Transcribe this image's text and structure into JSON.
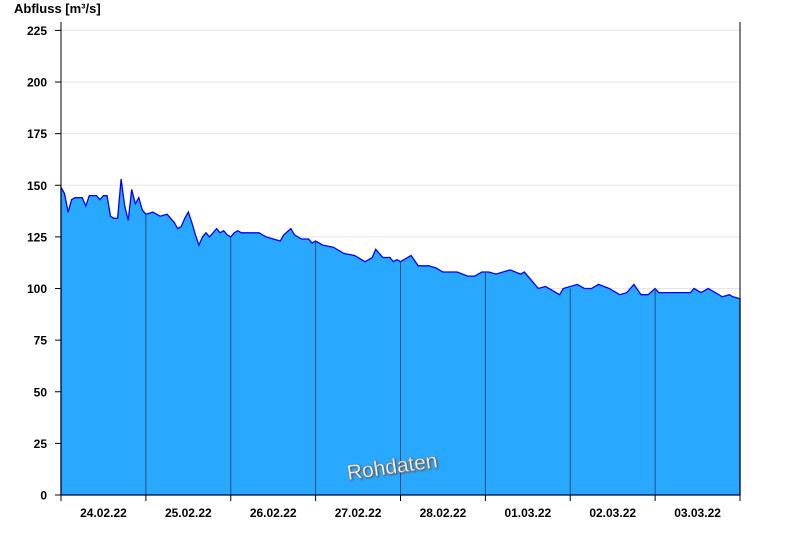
{
  "chart_data": {
    "type": "area",
    "title": "",
    "ylabel": "Abfluss [m³/s]",
    "xlabel": "",
    "ylim": [
      0,
      225
    ],
    "yticks": [
      "0",
      "25",
      "50",
      "75",
      "100",
      "125",
      "150",
      "175",
      "200",
      "225"
    ],
    "xlim": [
      "2022-02-24 00:00",
      "2022-03-04 00:00"
    ],
    "xtick_labels": [
      "24.02.22",
      "25.02.22",
      "26.02.22",
      "27.02.22",
      "28.02.22",
      "01.03.22",
      "02.03.22",
      "03.03.22"
    ],
    "grid": "horizontal",
    "annotation": "Rohdaten",
    "colors": {
      "fill": "#29a8ff",
      "line": "#0000ff",
      "grid": "#e6e6e6",
      "day_line": "#1f4f7a"
    },
    "series": [
      {
        "points": [
          [
            "2022-02-24 00:00",
            149
          ],
          [
            "2022-02-24 01:00",
            146
          ],
          [
            "2022-02-24 02:00",
            137
          ],
          [
            "2022-02-24 03:00",
            143
          ],
          [
            "2022-02-24 04:00",
            144
          ],
          [
            "2022-02-24 06:00",
            144
          ],
          [
            "2022-02-24 07:00",
            140
          ],
          [
            "2022-02-24 08:00",
            145
          ],
          [
            "2022-02-24 10:00",
            145
          ],
          [
            "2022-02-24 11:00",
            143
          ],
          [
            "2022-02-24 12:00",
            145
          ],
          [
            "2022-02-24 13:00",
            145
          ],
          [
            "2022-02-24 14:00",
            135
          ],
          [
            "2022-02-24 15:00",
            134
          ],
          [
            "2022-02-24 16:00",
            134
          ],
          [
            "2022-02-24 17:00",
            153
          ],
          [
            "2022-02-24 18:00",
            140
          ],
          [
            "2022-02-24 19:00",
            133
          ],
          [
            "2022-02-24 20:00",
            148
          ],
          [
            "2022-02-24 21:00",
            141
          ],
          [
            "2022-02-24 22:00",
            144
          ],
          [
            "2022-02-24 23:00",
            138
          ],
          [
            "2022-02-25 00:00",
            136
          ],
          [
            "2022-02-25 02:00",
            137
          ],
          [
            "2022-02-25 04:00",
            135
          ],
          [
            "2022-02-25 06:00",
            136
          ],
          [
            "2022-02-25 08:00",
            132
          ],
          [
            "2022-02-25 09:00",
            129
          ],
          [
            "2022-02-25 10:00",
            130
          ],
          [
            "2022-02-25 11:00",
            134
          ],
          [
            "2022-02-25 12:00",
            137
          ],
          [
            "2022-02-25 13:00",
            132
          ],
          [
            "2022-02-25 14:00",
            126
          ],
          [
            "2022-02-25 15:00",
            121
          ],
          [
            "2022-02-25 16:00",
            125
          ],
          [
            "2022-02-25 17:00",
            127
          ],
          [
            "2022-02-25 18:00",
            125
          ],
          [
            "2022-02-25 19:00",
            127
          ],
          [
            "2022-02-25 20:00",
            129
          ],
          [
            "2022-02-25 21:00",
            127
          ],
          [
            "2022-02-25 22:00",
            128
          ],
          [
            "2022-02-25 23:00",
            126
          ],
          [
            "2022-02-26 00:00",
            125
          ],
          [
            "2022-02-26 01:00",
            127
          ],
          [
            "2022-02-26 02:00",
            128
          ],
          [
            "2022-02-26 03:00",
            127
          ],
          [
            "2022-02-26 08:00",
            127
          ],
          [
            "2022-02-26 10:00",
            125
          ],
          [
            "2022-02-26 12:00",
            124
          ],
          [
            "2022-02-26 14:00",
            123
          ],
          [
            "2022-02-26 15:00",
            126
          ],
          [
            "2022-02-26 17:00",
            129
          ],
          [
            "2022-02-26 18:00",
            126
          ],
          [
            "2022-02-26 20:00",
            124
          ],
          [
            "2022-02-26 22:00",
            124
          ],
          [
            "2022-02-26 23:00",
            122
          ],
          [
            "2022-02-27 00:00",
            123
          ],
          [
            "2022-02-27 02:00",
            121
          ],
          [
            "2022-02-27 05:00",
            120
          ],
          [
            "2022-02-27 08:00",
            117
          ],
          [
            "2022-02-27 11:00",
            116
          ],
          [
            "2022-02-27 14:00",
            113
          ],
          [
            "2022-02-27 16:00",
            115
          ],
          [
            "2022-02-27 17:00",
            119
          ],
          [
            "2022-02-27 19:00",
            115
          ],
          [
            "2022-02-27 21:00",
            115
          ],
          [
            "2022-02-27 22:00",
            113
          ],
          [
            "2022-02-27 23:00",
            114
          ],
          [
            "2022-02-28 00:00",
            113
          ],
          [
            "2022-02-28 03:00",
            116
          ],
          [
            "2022-02-28 05:00",
            111
          ],
          [
            "2022-02-28 08:00",
            111
          ],
          [
            "2022-02-28 10:00",
            110
          ],
          [
            "2022-02-28 12:00",
            108
          ],
          [
            "2022-02-28 16:00",
            108
          ],
          [
            "2022-02-28 19:00",
            106
          ],
          [
            "2022-02-28 21:00",
            106
          ],
          [
            "2022-02-28 23:00",
            108
          ],
          [
            "2022-03-01 01:00",
            108
          ],
          [
            "2022-03-01 03:00",
            107
          ],
          [
            "2022-03-01 07:00",
            109
          ],
          [
            "2022-03-01 10:00",
            107
          ],
          [
            "2022-03-01 11:00",
            108
          ],
          [
            "2022-03-01 14:00",
            102
          ],
          [
            "2022-03-01 15:00",
            100
          ],
          [
            "2022-03-01 17:00",
            101
          ],
          [
            "2022-03-01 21:00",
            97
          ],
          [
            "2022-03-01 22:00",
            100
          ],
          [
            "2022-03-02 02:00",
            102
          ],
          [
            "2022-03-02 04:00",
            100
          ],
          [
            "2022-03-02 06:00",
            100
          ],
          [
            "2022-03-02 08:00",
            102
          ],
          [
            "2022-03-02 11:00",
            100
          ],
          [
            "2022-03-02 14:00",
            97
          ],
          [
            "2022-03-02 16:00",
            98
          ],
          [
            "2022-03-02 18:00",
            102
          ],
          [
            "2022-03-02 20:00",
            97
          ],
          [
            "2022-03-02 22:00",
            97
          ],
          [
            "2022-03-03 00:00",
            100
          ],
          [
            "2022-03-03 01:00",
            98
          ],
          [
            "2022-03-03 05:00",
            98
          ],
          [
            "2022-03-03 10:00",
            98
          ],
          [
            "2022-03-03 11:00",
            100
          ],
          [
            "2022-03-03 13:00",
            98
          ],
          [
            "2022-03-03 15:00",
            100
          ],
          [
            "2022-03-03 17:00",
            98
          ],
          [
            "2022-03-03 19:00",
            96
          ],
          [
            "2022-03-03 21:00",
            97
          ],
          [
            "2022-03-03 22:00",
            96
          ],
          [
            "2022-03-04 00:00",
            95
          ]
        ]
      }
    ]
  }
}
